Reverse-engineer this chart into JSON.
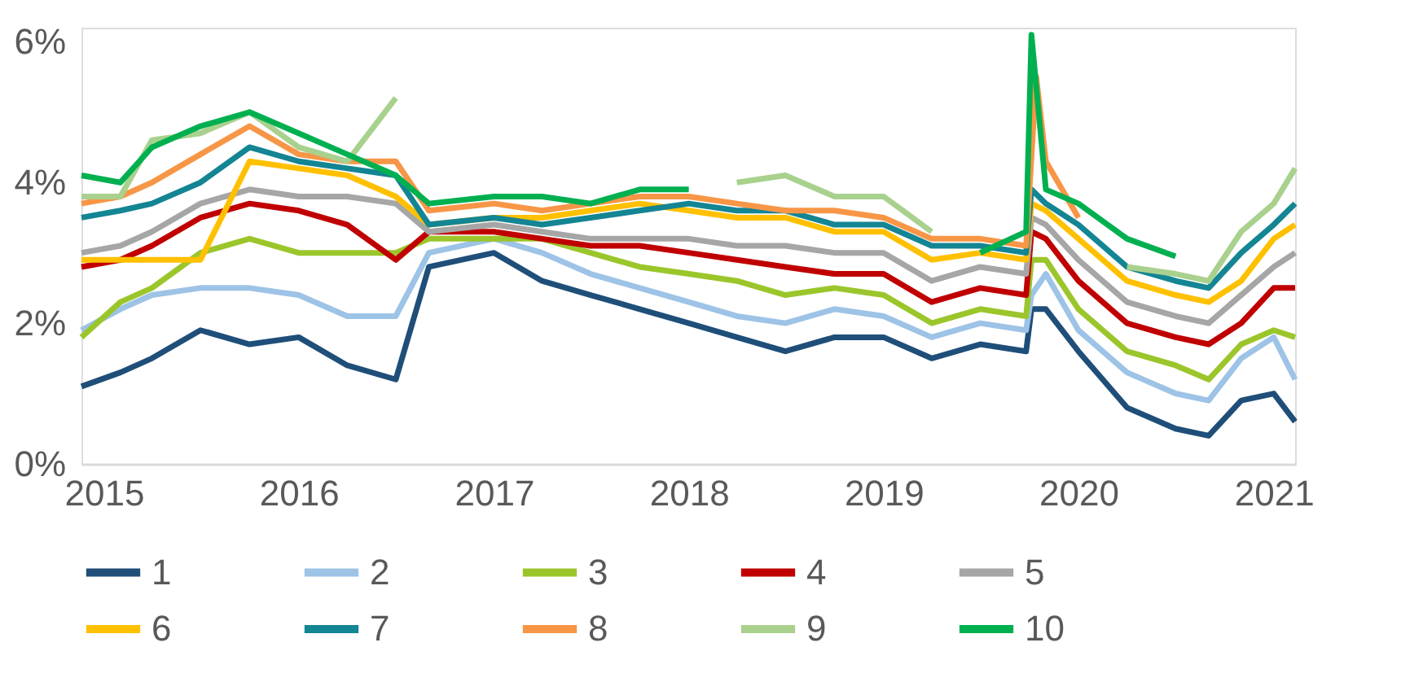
{
  "chart_data": {
    "type": "line",
    "x": [
      "2014-11-20",
      "2015-02-01",
      "2015-04-01",
      "2015-07-01",
      "2015-10-01",
      "2016-01-01",
      "2016-04-01",
      "2016-07-01",
      "2016-09-01",
      "2017-01-01",
      "2017-04-01",
      "2017-07-01",
      "2017-10-01",
      "2018-01-01",
      "2018-04-01",
      "2018-07-01",
      "2018-10-01",
      "2019-01-01",
      "2019-04-01",
      "2019-07-01",
      "2019-09-25",
      "2019-10-05",
      "2019-11-01",
      "2020-01-01",
      "2020-04-01",
      "2020-07-01",
      "2020-09-01",
      "2020-11-01",
      "2021-01-01",
      "2021-02-10"
    ],
    "series": [
      {
        "name": "1",
        "color": "#1f4e79",
        "values": [
          1.1,
          1.3,
          1.5,
          1.9,
          1.7,
          1.8,
          1.4,
          1.2,
          2.8,
          3.0,
          2.6,
          2.4,
          2.2,
          2.0,
          1.8,
          1.6,
          1.8,
          1.8,
          1.5,
          1.7,
          1.6,
          2.2,
          2.2,
          1.6,
          0.8,
          0.5,
          0.4,
          0.9,
          1.0,
          0.6
        ]
      },
      {
        "name": "2",
        "color": "#9dc3e6",
        "values": [
          1.9,
          2.2,
          2.4,
          2.5,
          2.5,
          2.4,
          2.1,
          2.1,
          3.0,
          3.2,
          3.0,
          2.7,
          2.5,
          2.3,
          2.1,
          2.0,
          2.2,
          2.1,
          1.8,
          2.0,
          1.9,
          2.4,
          2.7,
          1.9,
          1.3,
          1.0,
          0.9,
          1.5,
          1.8,
          1.2
        ]
      },
      {
        "name": "3",
        "color": "#9bc62b",
        "values": [
          1.8,
          2.3,
          2.5,
          3.0,
          3.2,
          3.0,
          3.0,
          3.0,
          3.2,
          3.2,
          3.2,
          3.0,
          2.8,
          2.7,
          2.6,
          2.4,
          2.5,
          2.4,
          2.0,
          2.2,
          2.1,
          2.9,
          2.9,
          2.2,
          1.6,
          1.4,
          1.2,
          1.7,
          1.9,
          1.8
        ]
      },
      {
        "name": "4",
        "color": "#c00000",
        "values": [
          2.8,
          2.9,
          3.1,
          3.5,
          3.7,
          3.6,
          3.4,
          2.9,
          3.3,
          3.3,
          3.2,
          3.1,
          3.1,
          3.0,
          2.9,
          2.8,
          2.7,
          2.7,
          2.3,
          2.5,
          2.4,
          3.3,
          3.2,
          2.6,
          2.0,
          1.8,
          1.7,
          2.0,
          2.5,
          2.5
        ]
      },
      {
        "name": "5",
        "color": "#a6a6a6",
        "values": [
          3.0,
          3.1,
          3.3,
          3.7,
          3.9,
          3.8,
          3.8,
          3.7,
          3.3,
          3.4,
          3.3,
          3.2,
          3.2,
          3.2,
          3.1,
          3.1,
          3.0,
          3.0,
          2.6,
          2.8,
          2.7,
          3.5,
          3.4,
          2.9,
          2.3,
          2.1,
          2.0,
          2.4,
          2.8,
          3.0
        ]
      },
      {
        "name": "6",
        "color": "#ffc000",
        "values": [
          2.9,
          2.9,
          2.9,
          2.9,
          4.3,
          4.2,
          4.1,
          3.8,
          3.4,
          3.5,
          3.5,
          3.6,
          3.7,
          3.6,
          3.5,
          3.5,
          3.3,
          3.3,
          2.9,
          3.0,
          2.9,
          3.7,
          3.6,
          3.2,
          2.6,
          2.4,
          2.3,
          2.6,
          3.2,
          3.4
        ]
      },
      {
        "name": "7",
        "color": "#138593",
        "values": [
          3.5,
          3.6,
          3.7,
          4.0,
          4.5,
          4.3,
          4.2,
          4.1,
          3.4,
          3.5,
          3.4,
          3.5,
          3.6,
          3.7,
          3.6,
          3.6,
          3.4,
          3.4,
          3.1,
          3.1,
          3.0,
          3.9,
          3.7,
          3.4,
          2.8,
          2.6,
          2.5,
          3.0,
          3.4,
          3.7
        ]
      },
      {
        "name": "8",
        "color": "#f79646",
        "x": [
          "2014-11-20",
          "2015-02-01",
          "2015-04-01",
          "2015-07-01",
          "2015-10-01",
          "2016-01-01",
          "2016-04-01",
          "2016-07-01",
          "2016-09-01",
          "2017-01-01",
          "2017-04-01",
          "2017-07-01",
          "2017-10-01",
          "2018-01-01",
          "2018-04-01",
          "2018-07-01",
          "2018-10-01",
          "2019-01-01",
          "2019-04-01",
          "2019-07-01",
          "2019-09-25",
          "2019-10-14",
          "2019-11-01",
          "2020-01-01"
        ],
        "values": [
          3.7,
          3.8,
          4.0,
          4.4,
          4.8,
          4.4,
          4.3,
          4.3,
          3.6,
          3.7,
          3.6,
          3.7,
          3.8,
          3.8,
          3.7,
          3.6,
          3.6,
          3.5,
          3.2,
          3.2,
          3.1,
          5.5,
          4.3,
          3.5
        ]
      },
      {
        "name": "9",
        "color": "#a9d18e",
        "values": [
          3.8,
          3.8,
          4.6,
          4.7,
          5.0,
          4.5,
          4.3,
          5.2,
          null,
          null,
          null,
          null,
          null,
          null,
          4.0,
          4.1,
          3.8,
          3.8,
          3.3,
          null,
          null,
          null,
          null,
          null,
          2.8,
          2.7,
          2.6,
          3.3,
          3.7,
          4.2
        ]
      },
      {
        "name": "10",
        "color": "#00b050",
        "values": [
          4.1,
          4.0,
          4.5,
          4.8,
          5.0,
          4.7,
          4.4,
          4.1,
          3.7,
          3.8,
          3.8,
          3.7,
          3.9,
          3.9,
          null,
          null,
          null,
          null,
          null,
          3.0,
          3.3,
          6.1,
          3.9,
          3.7,
          3.2,
          2.95,
          null,
          null,
          null,
          null
        ]
      }
    ],
    "xlim": [
      "2014-11-20",
      "2021-02-10"
    ],
    "xticks": [
      "2015",
      "2016",
      "2017",
      "2018",
      "2019",
      "2020",
      "2021"
    ],
    "ylim": [
      0,
      6.2
    ],
    "yticks": [
      {
        "value": 0,
        "label": "0%"
      },
      {
        "value": 2,
        "label": "2%"
      },
      {
        "value": 4,
        "label": "4%"
      },
      {
        "value": 6,
        "label": "6%"
      }
    ],
    "legend": "bottom",
    "grid": false,
    "line_style": "solid"
  }
}
